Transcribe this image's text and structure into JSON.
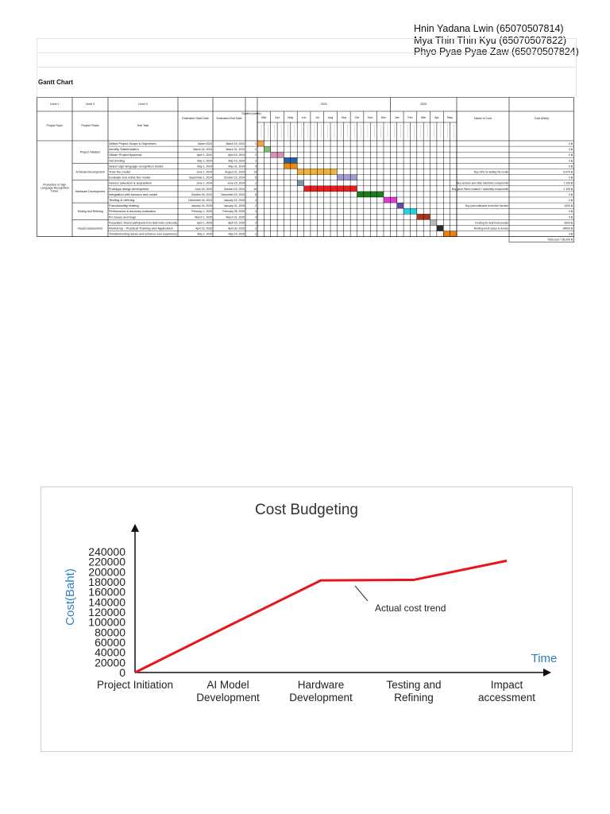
{
  "authors": [
    "Hnin Yadana Lwin (65070507814)",
    "Mya Thin Thin Kyu (65070507822)",
    "Phyo Pyae Pyae Zaw (65070507824)"
  ],
  "gantt": {
    "title": "Gantt Chart",
    "headers": {
      "level1": "Level 1",
      "level2": "Level 2",
      "level3": "Level 3",
      "project_topic": "Project Topic",
      "project_phase": "Project Phase",
      "sub_task": "Sub Task",
      "start": "Estimated Start Date",
      "end": "Estimated End Date",
      "duration": "Duration (weeks)",
      "name_of_cost": "Name of Cost",
      "cost": "Cost (Baht)"
    },
    "years": [
      "2024",
      "2025"
    ],
    "months": [
      "Mar",
      "Apr",
      "May",
      "Jun",
      "Jul",
      "Aug",
      "Sep",
      "Oct",
      "Nov",
      "Dec",
      "Jan",
      "Feb",
      "Mar",
      "Apr",
      "May"
    ],
    "topic": "Production of Sign Language Recognition Glove",
    "phases": [
      "Project Initiation",
      "AI Model Development",
      "Hardware Development",
      "Testing and Refining",
      "Impact assessment"
    ],
    "tasks": [
      {
        "name": "Define Project Scope & Objectives",
        "start": "March 2024",
        "end": "March 15, 2024",
        "dur": "2",
        "cost_name": "",
        "cost": "0 ฿"
      },
      {
        "name": "Identify Stakeholders",
        "start": "March 16, 2024",
        "end": "March 31, 2024",
        "dur": "2",
        "cost_name": "",
        "cost": "0 ฿"
      },
      {
        "name": "Obtain Project Approval",
        "start": "April 1, 2024",
        "end": "April 15, 2024",
        "dur": "2",
        "cost_name": "",
        "cost": "0 ฿"
      },
      {
        "name": "Get funding",
        "start": "May 1, 2024",
        "end": "May 15, 2024",
        "dur": "2",
        "cost_name": "",
        "cost": "0 ฿"
      },
      {
        "name": "Select sign language recognition model",
        "start": "May 1, 2024",
        "end": "May 31, 2024",
        "dur": "4",
        "cost_name": "",
        "cost": "0 ฿"
      },
      {
        "name": "Train the model",
        "start": "June 1, 2024",
        "end": "August 31, 2024",
        "dur": "13",
        "cost_name": "Buy GPU for testing the model",
        "cost": "8,970 ฿"
      },
      {
        "name": "Evaluate and refine the model",
        "start": "September 1, 2024",
        "end": "October 15, 2024",
        "dur": "6",
        "cost_name": "",
        "cost": "0 ฿"
      },
      {
        "name": "Sensor selection & acquisition",
        "start": "June 1, 2024",
        "end": "June 15, 2024",
        "dur": "2",
        "cost_name": "Buy sensors and other electronic components",
        "cost": "7,100 ฿"
      },
      {
        "name": "Prototype design development",
        "start": "June 16, 2024",
        "end": "October 15, 2024",
        "dur": "16",
        "cost_name": "Buy glove Fabric material + assembly components",
        "cost": "2,100 ฿"
      },
      {
        "name": "Integration with sensors and model",
        "start": "October 16, 2024",
        "end": "December 15, 2024",
        "dur": "8",
        "cost_name": "",
        "cost": "0 ฿"
      },
      {
        "name": "Testing & refining",
        "start": "December 16, 2024",
        "end": "January 15, 2025",
        "dur": "4",
        "cost_name": "",
        "cost": "0 ฿"
      },
      {
        "name": "Functionality testing",
        "start": "January 16, 2025",
        "end": "January 31, 2025",
        "dur": "2",
        "cost_name": "Buy paid softwares to test the function",
        "cost": "1000 ฿"
      },
      {
        "name": "Performance & accuracy evaluation",
        "start": "February 1, 2025",
        "end": "February 28, 2025",
        "dur": "4",
        "cost_name": "",
        "cost": "0 ฿"
      },
      {
        "name": "Fix issues and bugs",
        "start": "March 1, 2025",
        "end": "March 31, 2025",
        "dur": "4",
        "cost_name": "",
        "cost": "0 ฿"
      },
      {
        "name": "Preparation: Recruit participants from deaf-mute community",
        "start": "April 1, 2025",
        "end": "April 15, 2025",
        "dur": "2",
        "cost_name": "Funding for deaf-mute people",
        "cost": "3000 ฿"
      },
      {
        "name": "Workshop : Practical Training and Application",
        "start": "April 16, 2025",
        "end": "April 30, 2025",
        "dur": "2",
        "cost_name": "Renting event space & venues",
        "cost": "34000 ฿"
      },
      {
        "name": "Troubleshooting issues and enhance user experience",
        "start": "May 1, 2025",
        "end": "May 15, 2025",
        "dur": "2",
        "cost_name": "",
        "cost": "0 ฿"
      }
    ],
    "total": "Total cost = 56,000 ฿"
  },
  "chart_data": {
    "type": "line",
    "title": "Cost Budgeting",
    "xlabel": "Time",
    "ylabel": "Cost(Baht)",
    "categories": [
      "Project Initiation",
      "AI Model Development",
      "Hardware Development",
      "Testing and Refining",
      "Impact accessment"
    ],
    "ylim": [
      0,
      240000
    ],
    "yticks": [
      0,
      20000,
      40000,
      60000,
      80000,
      100000,
      120000,
      140000,
      160000,
      180000,
      200000,
      220000,
      240000
    ],
    "series": [
      {
        "values": [
          0,
          92000,
          183000,
          184000,
          222000
        ],
        "color": "#e8151b"
      }
    ],
    "annotations": [
      {
        "text": "Actual cost trend"
      }
    ],
    "grid": false,
    "axis_color": "#111111",
    "ylabel_color": "#2a7fc6",
    "xlabel_color": "#2a7fc6"
  }
}
